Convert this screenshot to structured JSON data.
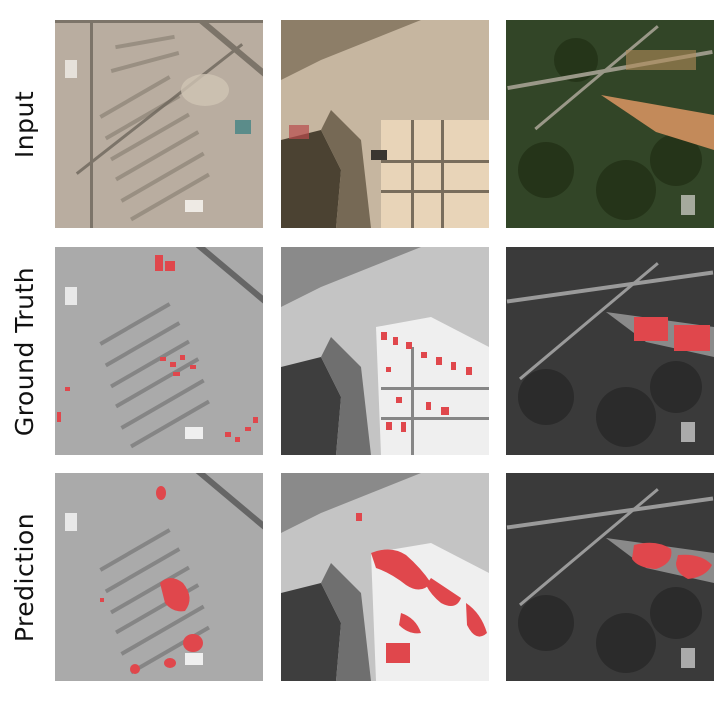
{
  "rows": [
    {
      "label": "Input"
    },
    {
      "label": "Ground Truth"
    },
    {
      "label": "Prediction"
    }
  ],
  "scenes": [
    {
      "name": "suburban-scene",
      "terrain": "#b9ada0"
    },
    {
      "name": "dense-suburban-scene",
      "terrain": "#c6b6a0"
    },
    {
      "name": "vegetated-scene",
      "terrain": "#324527"
    }
  ],
  "colors": {
    "mask_red": "#e0474c",
    "background": "#ffffff"
  }
}
